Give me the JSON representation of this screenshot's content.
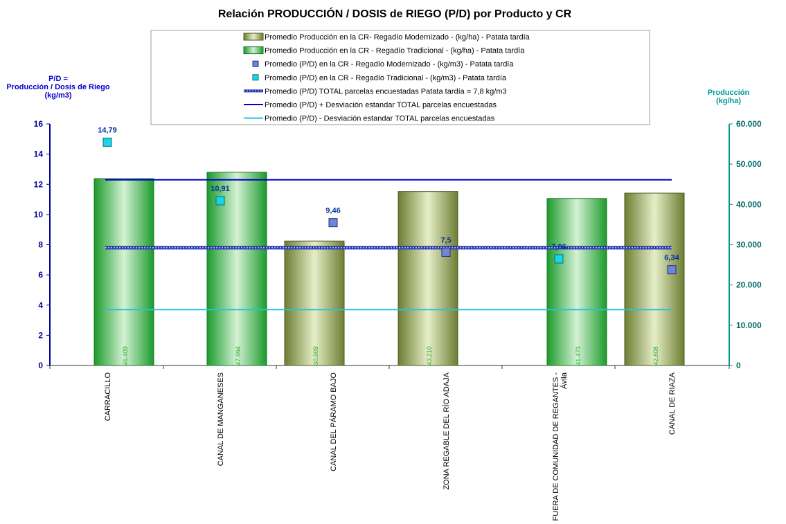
{
  "chart_data": {
    "type": "bar",
    "title": "Relación PRODUCCIÓN / DOSIS de RIEGO (P/D) por Producto y CR",
    "ylabel_left": [
      "P/D =",
      "Producción / Dosis de Riego",
      "(kg/m3)"
    ],
    "ylabel_right": [
      "Producción",
      "(kg/ha)"
    ],
    "ylim_left": [
      0,
      16
    ],
    "ylim_right": [
      0,
      60000
    ],
    "yticks_left": [
      "0",
      "2",
      "4",
      "6",
      "8",
      "10",
      "12",
      "14",
      "16"
    ],
    "yticks_right": [
      "0",
      "10.000",
      "20.000",
      "30.000",
      "40.000",
      "50.000",
      "60.000"
    ],
    "categories": [
      [
        "CARRACILLO"
      ],
      [
        "CANAL DE MANGANESES"
      ],
      [
        "CANAL DEL PÁRAMO BAJO"
      ],
      [
        "ZONA REGABLE DEL RÍO ADAJA"
      ],
      [
        "FUERA DE COMUNIDAD DE REGANTES -",
        "Ávila"
      ],
      [
        "CANAL DE RIAZA"
      ]
    ],
    "production": {
      "values": [
        46409,
        47994,
        30909,
        43210,
        41473,
        42808
      ],
      "labels": [
        "46.409",
        "47.994",
        "30.909",
        "43.210",
        "41.473",
        "42.808"
      ],
      "type": [
        "tradicional",
        "tradicional",
        "modernizado",
        "modernizado",
        "tradicional",
        "modernizado"
      ]
    },
    "pd": {
      "values": [
        14.79,
        10.91,
        9.46,
        7.5,
        7.06,
        6.34
      ],
      "labels": [
        "14,79",
        "10,91",
        "9,46",
        "7,5",
        "7,06",
        "6,34"
      ],
      "type": [
        "tradicional",
        "tradicional",
        "modernizado",
        "modernizado",
        "tradicional",
        "modernizado"
      ]
    },
    "reference_lines": {
      "mean": 7.8,
      "plus_sd": 12.3,
      "minus_sd": 3.7
    },
    "legend": [
      "Promedio Producción en la CR- Regadío Modernizado -  (kg/ha) - Patata tardía",
      "Promedio Producción en la CR - Regadío Tradicional -  (kg/ha) - Patata tardía",
      "Promedio (P/D) en la CR - Regadío Modernizado - (kg/m3) - Patata tardía",
      "Promedio (P/D) en la CR - Regadío Tradicional - (kg/m3) - Patata tardía",
      "Promedio (P/D) TOTAL parcelas encuestadas Patata tardía = 7,8 kg/m3",
      "Promedio (P/D) + Desviación estandar TOTAL parcelas encuestadas",
      "Promedio (P/D) - Desviación estandar TOTAL parcelas encuestadas"
    ],
    "colors": {
      "modernizado_bar": "#8a9a4a",
      "tradicional_bar": "#3cb84a",
      "modernizado_marker": "#6f86d6",
      "tradicional_marker": "#19d6e6",
      "mean_line": "#3344cc",
      "plus_sd_line": "#0000cc",
      "minus_sd_line": "#22c4e0",
      "left_axis": "#000099",
      "right_axis": "#009999"
    }
  }
}
